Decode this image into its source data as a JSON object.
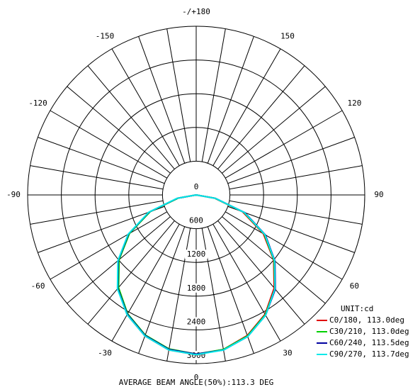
{
  "chart_data": {
    "type": "polar",
    "angle_ticks": [
      {
        "value": 180,
        "label": "-/+180"
      },
      150,
      120,
      90,
      60,
      30,
      0,
      -30,
      -60,
      -90,
      -120,
      -150
    ],
    "rlim": [
      0,
      3000
    ],
    "rticks": [
      0,
      600,
      1200,
      1800,
      2400,
      3000
    ],
    "x": [
      -90,
      -80,
      -70,
      -60,
      -50,
      -40,
      -30,
      -20,
      -10,
      0,
      10,
      20,
      30,
      40,
      50,
      60,
      70,
      80,
      90
    ],
    "legend_title": "UNIT:cd",
    "series": [
      {
        "name": "C0/180, 113.0deg",
        "color": "#e00000",
        "values": [
          0,
          330,
          880,
          1380,
          1800,
          2170,
          2460,
          2670,
          2800,
          2840,
          2790,
          2660,
          2450,
          2160,
          1800,
          1380,
          880,
          330,
          0
        ]
      },
      {
        "name": "C30/210, 113.0deg",
        "color": "#00d000",
        "values": [
          0,
          320,
          870,
          1370,
          1790,
          2150,
          2440,
          2650,
          2780,
          2830,
          2790,
          2670,
          2460,
          2180,
          1810,
          1400,
          900,
          340,
          0
        ]
      },
      {
        "name": "C60/240, 113.5deg",
        "color": "#0000a0",
        "values": [
          0,
          340,
          890,
          1390,
          1810,
          2170,
          2450,
          2660,
          2790,
          2830,
          2800,
          2680,
          2470,
          2190,
          1830,
          1420,
          920,
          350,
          0
        ]
      },
      {
        "name": "C90/270, 113.7deg",
        "color": "#00e8e8",
        "values": [
          0,
          350,
          900,
          1400,
          1820,
          2180,
          2460,
          2670,
          2800,
          2840,
          2800,
          2680,
          2470,
          2180,
          1820,
          1410,
          910,
          350,
          0
        ]
      }
    ],
    "footer": "AVERAGE BEAM ANGLE(50%):113.3 DEG"
  }
}
